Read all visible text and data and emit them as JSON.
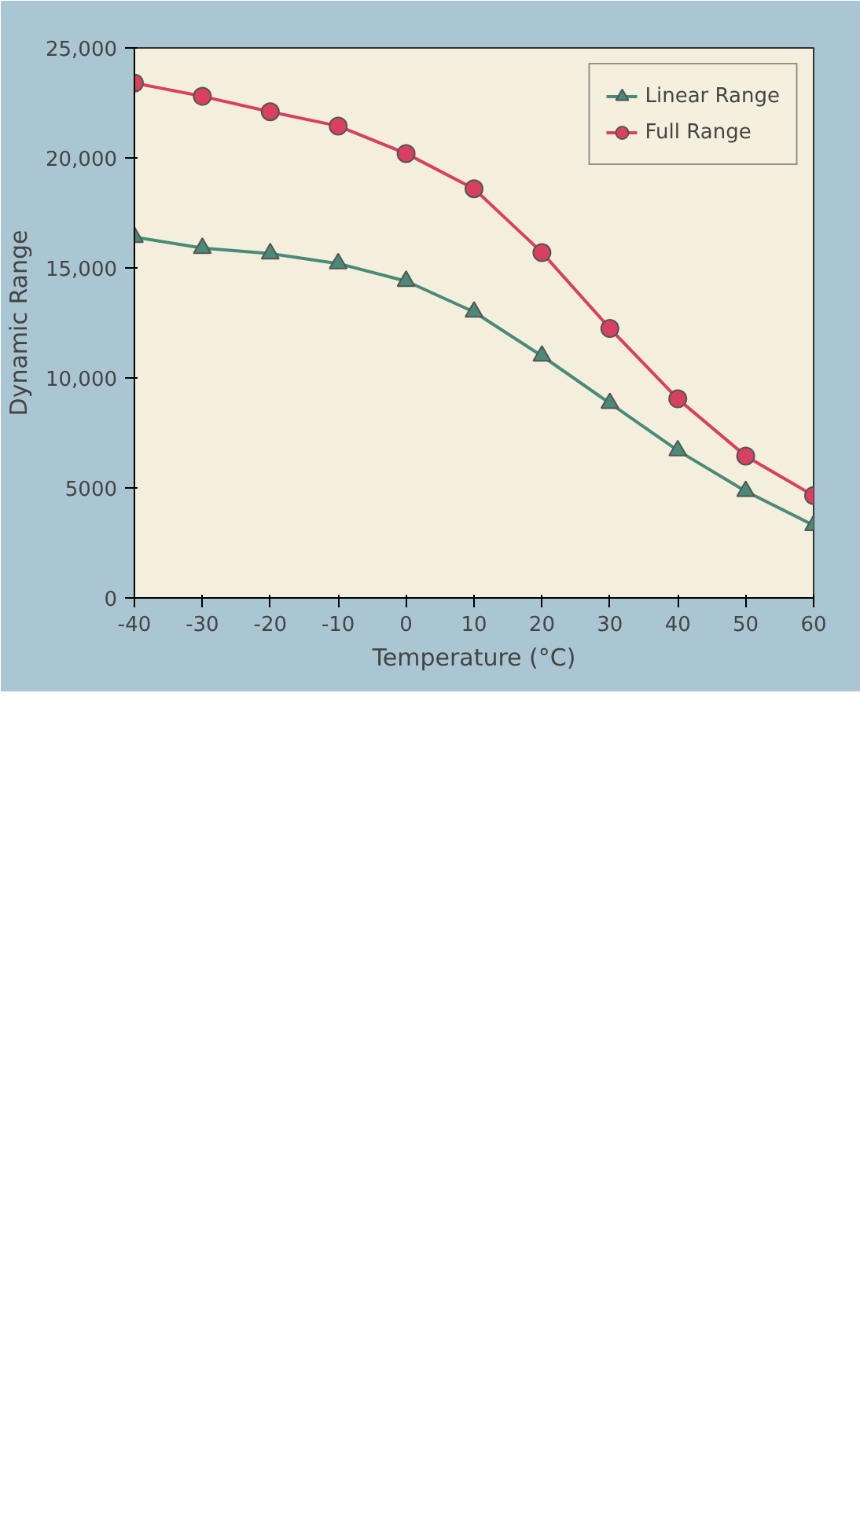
{
  "chart_data": {
    "type": "line",
    "xlabel": "Temperature (°C)",
    "ylabel": "Dynamic Range",
    "x": [
      -40,
      -30,
      -20,
      -10,
      0,
      10,
      20,
      30,
      40,
      50,
      60
    ],
    "series": [
      {
        "name": "Linear Range",
        "color": "#4a8a78",
        "marker": "triangle",
        "values": [
          16400,
          15900,
          15650,
          15200,
          14400,
          13000,
          11000,
          8850,
          6700,
          4850,
          3300
        ]
      },
      {
        "name": "Full Range",
        "color": "#d94060",
        "marker": "circle",
        "values": [
          23400,
          22800,
          22100,
          21450,
          20200,
          18600,
          15700,
          12250,
          9050,
          6450,
          4650
        ]
      }
    ],
    "xlim": [
      -40,
      60
    ],
    "xticks": [
      -40,
      -30,
      -20,
      -10,
      0,
      10,
      20,
      30,
      40,
      50,
      60
    ],
    "ylim": [
      0,
      25000
    ],
    "yticks": [
      0,
      {
        "value": 5000,
        "label": "5000"
      },
      {
        "value": 10000,
        "label": "10,000"
      },
      {
        "value": 15000,
        "label": "15,000"
      },
      {
        "value": 20000,
        "label": "20,000"
      },
      {
        "value": 25000,
        "label": "25,000"
      }
    ],
    "grid": false,
    "legend": "top right",
    "line_style": "solid"
  }
}
